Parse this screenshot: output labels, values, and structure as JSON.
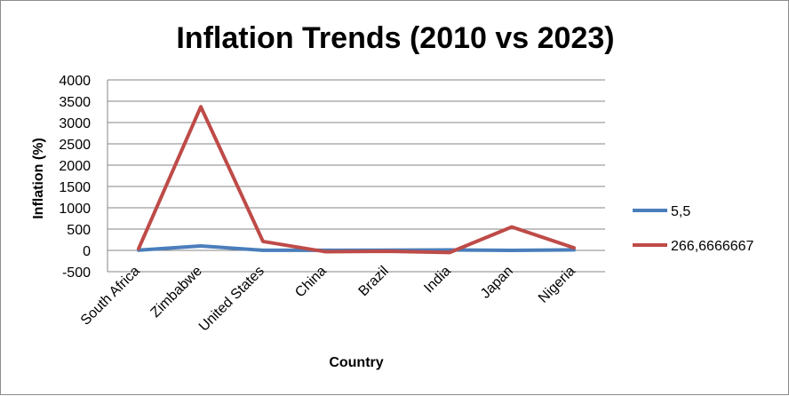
{
  "chart_data": {
    "type": "line",
    "title": "Inflation Trends (2010 vs 2023)",
    "xlabel": "Country",
    "ylabel": "Inflation (%)",
    "categories": [
      "South Africa",
      "Zimbabwe",
      "United States",
      "China",
      "Brazil",
      "India",
      "Japan",
      "Nigeria"
    ],
    "ylim": [
      -500,
      4000
    ],
    "yticks": [
      "-500",
      "0",
      "500",
      "1000",
      "1500",
      "2000",
      "2500",
      "3000",
      "3500",
      "4000"
    ],
    "grid": true,
    "legend_position": "right",
    "series": [
      {
        "name": "5,5",
        "color": "#4a7ebb",
        "values": [
          5,
          104,
          2,
          3,
          5,
          10,
          0,
          12
        ]
      },
      {
        "name": "266,6666667",
        "color": "#be4b48",
        "values": [
          40,
          3370,
          210,
          -30,
          -20,
          -50,
          550,
          60
        ]
      }
    ]
  }
}
